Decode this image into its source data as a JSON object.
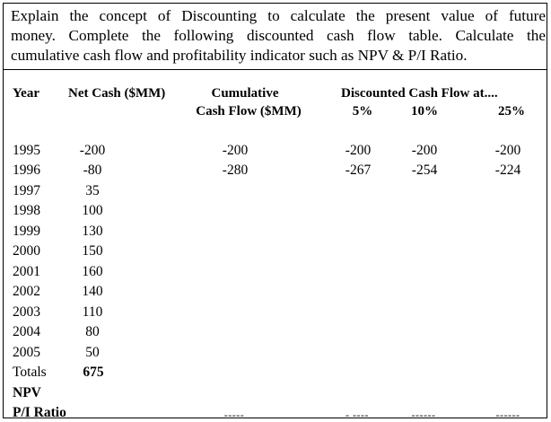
{
  "question": {
    "lines": [
      "Explain the concept of Discounting to calculate the present value of future",
      "money. Complete the following discounted cash flow table. Calculate the",
      "cumulative cash flow and profitability indicator such as NPV & P/I Ratio."
    ]
  },
  "headers": {
    "year": "Year",
    "net_cash": "Net Cash ($MM)",
    "cumulative_line1": "Cumulative",
    "cumulative_line2": "Cash Flow ($MM)",
    "discounted_title": "Discounted Cash Flow at....",
    "rate_5": "5%",
    "rate_10": "10%",
    "rate_25": "25%"
  },
  "rows": [
    {
      "year": "1995",
      "net": "-200",
      "cum": "-200",
      "d5": "-200",
      "d10": "-200",
      "d25": "-200"
    },
    {
      "year": "1996",
      "net": "-80",
      "cum": "-280",
      "d5": "-267",
      "d10": "-254",
      "d25": "-224"
    },
    {
      "year": "1997",
      "net": "35"
    },
    {
      "year": "1998",
      "net": "100"
    },
    {
      "year": "1999",
      "net": "130"
    },
    {
      "year": "2000",
      "net": "150"
    },
    {
      "year": "2001",
      "net": "160"
    },
    {
      "year": "2002",
      "net": "140"
    },
    {
      "year": "2003",
      "net": "110"
    },
    {
      "year": "2004",
      "net": "80"
    },
    {
      "year": "2005",
      "net": "50"
    }
  ],
  "totals": {
    "label": "Totals",
    "net": "675"
  },
  "npv_label": "NPV",
  "pi_label": "P/I Ratio",
  "blanks": {
    "cum": "-----",
    "d5": "- ----",
    "d10": "------",
    "d25": "------"
  }
}
